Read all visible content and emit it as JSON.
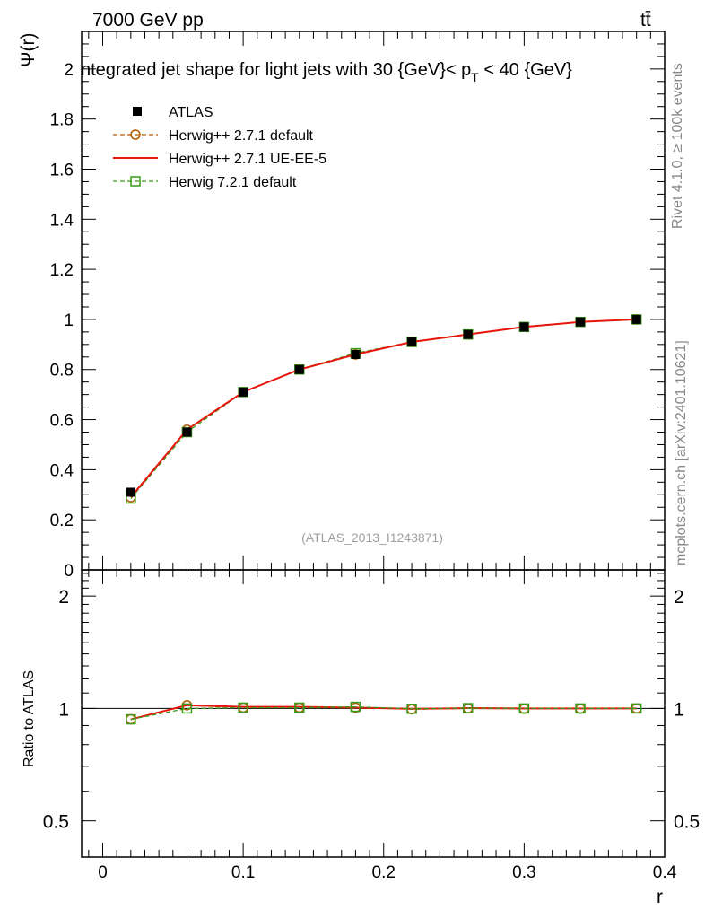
{
  "header": {
    "energy_label": "7000 GeV pp",
    "process_label": "tt̄",
    "rivet_label": "Rivet 4.1.0, ≥ 100k events",
    "mcplots_label": "mcplots.cern.ch [arXiv:2401.10621]"
  },
  "chart_data": [
    {
      "type": "line",
      "title": "ntegrated jet shape for light jets with 30 {GeV}< p_T < 40 {GeV}",
      "title_parts": {
        "pre": "ntegrated jet shape for light jets with 30 {GeV}< p",
        "sub": "T",
        "post": " < 40 {GeV}"
      },
      "ylabel": "Ψ(r)",
      "xlabel": "r",
      "watermark": "(ATLAS_2013_I1243871)",
      "xlim": [
        -0.015,
        0.4
      ],
      "ylim": [
        0,
        2.15
      ],
      "x_ticks": [
        0,
        0.1,
        0.2,
        0.3,
        0.4
      ],
      "x_tick_labels": [
        "0",
        "0.1",
        "0.2",
        "0.3",
        "0.4"
      ],
      "y_ticks": [
        0,
        0.2,
        0.4,
        0.6,
        0.8,
        1,
        1.2,
        1.4,
        1.6,
        1.8,
        2
      ],
      "y_tick_labels": [
        "0",
        "0.2",
        "0.4",
        "0.6",
        "0.8",
        "1",
        "1.2",
        "1.4",
        "1.6",
        "1.8",
        "2"
      ],
      "legend_position": "top-left",
      "x": [
        0.02,
        0.06,
        0.1,
        0.14,
        0.18,
        0.22,
        0.26,
        0.3,
        0.34,
        0.38
      ],
      "series": [
        {
          "name": "ATLAS",
          "color": "#000000",
          "marker": "filled-square",
          "values": [
            0.31,
            0.55,
            0.71,
            0.8,
            0.86,
            0.91,
            0.94,
            0.97,
            0.99,
            1.0
          ]
        },
        {
          "name": "Herwig++ 2.7.1 default",
          "color": "#b35900",
          "marker": "open-circle",
          "dash": "dashed",
          "values": [
            0.29,
            0.56,
            0.71,
            0.8,
            0.86,
            0.91,
            0.94,
            0.97,
            0.99,
            1.0
          ]
        },
        {
          "name": "Herwig++ 2.7.1 UE-EE-5",
          "color": "#e8150b",
          "marker": "none",
          "dash": "solid",
          "values": [
            0.29,
            0.56,
            0.71,
            0.8,
            0.86,
            0.91,
            0.94,
            0.97,
            0.99,
            1.0
          ]
        },
        {
          "name": "Herwig 7.2.1 default",
          "color": "#3a9a1a",
          "marker": "open-square",
          "dash": "dashed",
          "values": [
            0.285,
            0.55,
            0.71,
            0.8,
            0.865,
            0.91,
            0.94,
            0.97,
            0.99,
            1.0
          ]
        }
      ]
    },
    {
      "type": "line",
      "ylabel": "Ratio to ATLAS",
      "xlabel": "r",
      "ylim": [
        0.4,
        2.35
      ],
      "y_scale": "log",
      "y_ticks": [
        0.5,
        1,
        2
      ],
      "y_tick_labels": [
        "0.5",
        "1",
        "2"
      ],
      "x": [
        0.02,
        0.06,
        0.1,
        0.14,
        0.18,
        0.22,
        0.26,
        0.3,
        0.34,
        0.38
      ],
      "series": [
        {
          "name": "Herwig++ 2.7.1 default",
          "values": [
            0.935,
            1.02,
            1.005,
            1.005,
            1.005,
            0.995,
            1.0,
            0.998,
            0.998,
            1.0
          ]
        },
        {
          "name": "Herwig++ 2.7.1 UE-EE-5",
          "values": [
            0.935,
            1.02,
            1.01,
            1.01,
            1.005,
            0.998,
            1.002,
            1.0,
            1.0,
            1.0
          ]
        },
        {
          "name": "Herwig 7.2.1 default",
          "values": [
            0.935,
            1.0,
            1.005,
            1.005,
            1.01,
            0.998,
            1.002,
            1.0,
            1.0,
            1.0
          ]
        }
      ]
    }
  ]
}
